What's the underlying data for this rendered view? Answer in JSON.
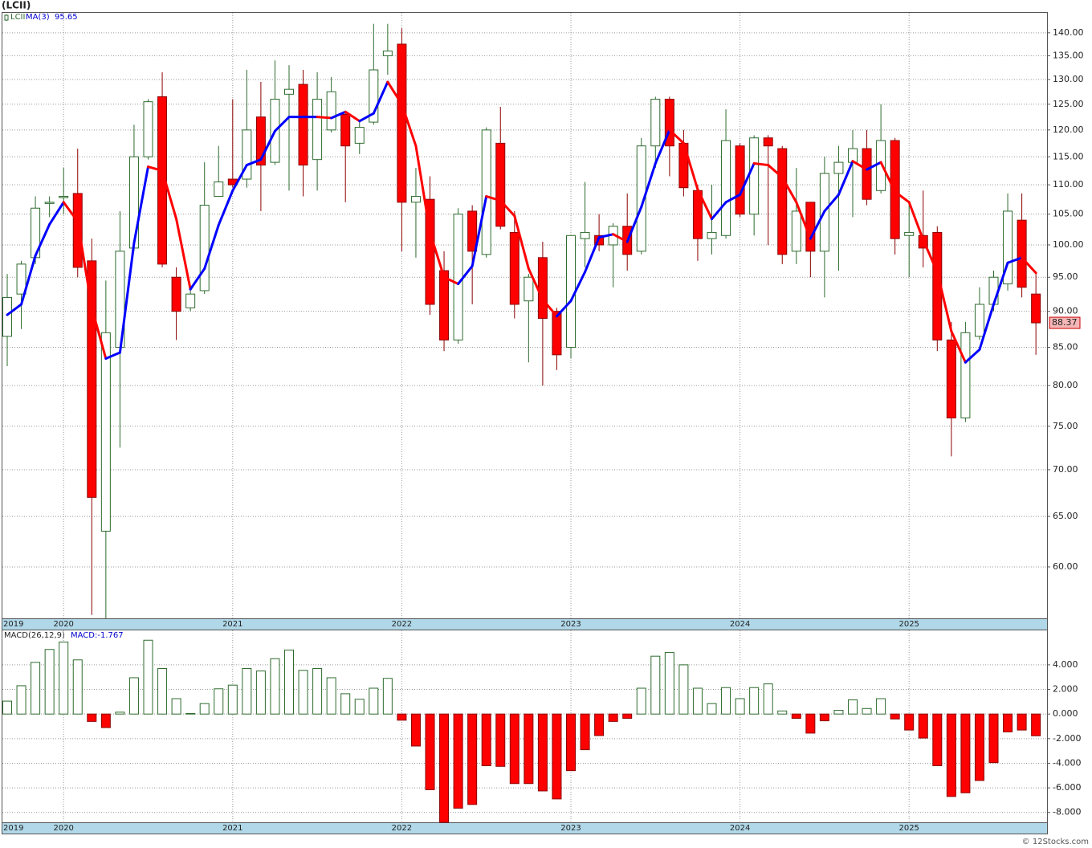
{
  "chart_data": [
    {
      "type": "candlestick",
      "title": "(LCII)",
      "name": "LCII",
      "categories": [
        "2019",
        null,
        null,
        null,
        "2020",
        null,
        null,
        null,
        null,
        null,
        null,
        null,
        null,
        null,
        null,
        null,
        "2021",
        null,
        null,
        null,
        null,
        null,
        null,
        null,
        null,
        null,
        null,
        null,
        "2022",
        null,
        null,
        null,
        null,
        null,
        null,
        null,
        null,
        null,
        null,
        null,
        "2023",
        null,
        null,
        null,
        null,
        null,
        null,
        null,
        null,
        null,
        null,
        null,
        "2024",
        null,
        null,
        null,
        null,
        null,
        null,
        null,
        null,
        null,
        null,
        null,
        "2025",
        null,
        null,
        null,
        null,
        null,
        null,
        null,
        null,
        null
      ],
      "open": [
        86.5,
        92.5,
        98,
        107,
        108,
        108.5,
        97.5,
        63.5,
        85,
        99.5,
        115,
        126.5,
        95,
        90.5,
        93,
        108,
        111,
        111,
        122.5,
        114,
        127,
        129,
        114.5,
        120,
        123,
        117.5,
        121.5,
        135,
        137.5,
        107,
        107.5,
        96,
        86,
        105.5,
        98.5,
        117.5,
        102,
        91.5,
        98,
        90,
        85,
        101,
        101.5,
        100,
        103,
        99,
        117,
        126,
        117.5,
        109,
        101,
        101.5,
        117,
        105,
        118.5,
        116.5,
        99,
        107,
        99,
        112,
        114,
        116.5,
        109,
        118,
        101.5,
        101.5,
        102,
        86,
        76,
        86.5,
        91,
        94,
        104,
        92.5
      ],
      "high": [
        95.5,
        97.5,
        108,
        108,
        113,
        116.5,
        101,
        94.5,
        105.5,
        121,
        126,
        131.5,
        96.5,
        93,
        114,
        117,
        126,
        132,
        129.5,
        134,
        133,
        132,
        131.5,
        130.5,
        123.5,
        121.5,
        142,
        142,
        141,
        113,
        111.5,
        99,
        106,
        106.5,
        120.5,
        124.5,
        105.5,
        95.5,
        100.5,
        90.5,
        101.5,
        110.5,
        105,
        103.5,
        108.5,
        118.5,
        126.5,
        126.5,
        120,
        110,
        110,
        124,
        117.5,
        119,
        119,
        117,
        113,
        107,
        115,
        117,
        120,
        120,
        125,
        118.5,
        107,
        109,
        103,
        88.5,
        88.5,
        93.5,
        96,
        108.5,
        108.5,
        95.5
      ],
      "low": [
        82.5,
        87.5,
        97,
        104.5,
        105,
        95,
        55.6,
        55.3,
        72.5,
        99,
        114.5,
        96.5,
        86,
        90,
        92.5,
        108,
        109.5,
        109.5,
        105.5,
        113.5,
        109,
        108,
        109,
        119.5,
        107,
        115.5,
        121,
        131,
        99,
        98,
        89.5,
        84.5,
        85.5,
        91,
        98,
        102.5,
        89,
        83,
        80,
        82,
        83.5,
        96.5,
        99,
        93.5,
        96,
        98.5,
        113,
        111.5,
        108,
        97.5,
        98.5,
        101,
        104.5,
        101.5,
        100,
        97,
        97,
        95,
        92,
        96,
        104.5,
        106.5,
        108.5,
        98.5,
        95,
        96.5,
        84.5,
        71.5,
        75.5,
        86,
        90,
        93,
        92,
        84
      ],
      "close": [
        92,
        97,
        106,
        107,
        108,
        96.5,
        67,
        87,
        99,
        115,
        125.5,
        97,
        90,
        92.5,
        106.5,
        110.5,
        110,
        120,
        113.5,
        126,
        128,
        113.5,
        126,
        127.5,
        117,
        120.5,
        132,
        136,
        107,
        108,
        91,
        86,
        105,
        99,
        120,
        103,
        91,
        95,
        89,
        84,
        101.5,
        102,
        100,
        103,
        98.5,
        117,
        126,
        117,
        109.5,
        101,
        102,
        118,
        105,
        118.5,
        117,
        98.5,
        105.5,
        99,
        112,
        114,
        116.5,
        107.5,
        118,
        101,
        102,
        99.5,
        86,
        76,
        87,
        91,
        95,
        105.5,
        93.5,
        88.37
      ],
      "up_color": "#2e6b2e",
      "down_color": "#ff0000",
      "series": [
        {
          "name": "MA(3)",
          "up_color": "#0000ff",
          "down_color": "#ff0000",
          "values": [
            89.5,
            91,
            98.3,
            103.3,
            107,
            103.8,
            90.5,
            83.5,
            84.3,
            100.3,
            113.2,
            112.5,
            104.2,
            93.2,
            96.3,
            103.2,
            109,
            113.5,
            114.5,
            119.8,
            122.5,
            122.5,
            122.5,
            122.3,
            123.5,
            121.7,
            123.2,
            129.5,
            125,
            117,
            102,
            95,
            94,
            96.7,
            108,
            107.3,
            104.7,
            96.3,
            91.7,
            89.3,
            91.5,
            95.8,
            101.2,
            101.7,
            100.5,
            106.2,
            113.8,
            120,
            117.5,
            109.2,
            104.2,
            107,
            108.3,
            113.8,
            113.5,
            111.3,
            107,
            101,
            105.5,
            108.3,
            114.2,
            112.7,
            114,
            108.8,
            107,
            100.8,
            95.8,
            87.2,
            83,
            84.7,
            91,
            97.2,
            98,
            95.65
          ]
        }
      ],
      "log_scale": true,
      "grid": true,
      "ylim": [
        55.3,
        144.5
      ],
      "yticks": [
        {
          "value": 60,
          "label": "60.00"
        },
        {
          "value": 65,
          "label": "65.00"
        },
        {
          "value": 70,
          "label": "70.00"
        },
        {
          "value": 75,
          "label": "75.00"
        },
        {
          "value": 80,
          "label": "80.00"
        },
        {
          "value": 85,
          "label": "85.00"
        },
        {
          "value": 90,
          "label": "90.00"
        },
        {
          "value": 95,
          "label": "95.00"
        },
        {
          "value": 100,
          "label": "100.00"
        },
        {
          "value": 105,
          "label": "105.00"
        },
        {
          "value": 110,
          "label": "110.00"
        },
        {
          "value": 115,
          "label": "115.00"
        },
        {
          "value": 120,
          "label": "120.00"
        },
        {
          "value": 125,
          "label": "125.00"
        },
        {
          "value": 130,
          "label": "130.00"
        },
        {
          "value": 135,
          "label": "135.00"
        },
        {
          "value": 140,
          "label": "140.00"
        }
      ]
    },
    {
      "type": "histogram_bar",
      "name": "MACD(26,12,9)",
      "current_label": "MACD:-1.767",
      "up_color": "#2e6b2e",
      "down_color": "#ff0000",
      "values": [
        1.05,
        2.3,
        4.2,
        5.25,
        5.85,
        4.4,
        -0.6,
        -1.1,
        0.15,
        2.95,
        6.0,
        3.7,
        1.25,
        0.05,
        0.85,
        2.05,
        2.35,
        3.7,
        3.5,
        4.5,
        5.2,
        3.55,
        3.7,
        2.95,
        1.65,
        1.2,
        2.1,
        2.9,
        -0.5,
        -2.6,
        -6.15,
        -8.8,
        -7.65,
        -7.35,
        -4.2,
        -4.25,
        -5.65,
        -5.65,
        -6.25,
        -6.9,
        -4.6,
        -2.9,
        -1.75,
        -0.6,
        -0.35,
        2.1,
        4.7,
        5.0,
        4.0,
        2.1,
        0.85,
        2.15,
        1.25,
        2.15,
        2.45,
        0.25,
        -0.35,
        -1.55,
        -0.55,
        0.3,
        1.15,
        0.45,
        1.25,
        -0.4,
        -1.3,
        -1.95,
        -4.2,
        -6.7,
        -6.4,
        -5.4,
        -3.95,
        -1.45,
        -1.3,
        -1.767
      ],
      "ylim": [
        -8.8,
        6.8
      ],
      "yticks": [
        {
          "value": -8,
          "label": "-8.000"
        },
        {
          "value": -6,
          "label": "-6.000"
        },
        {
          "value": -4,
          "label": "-4.000"
        },
        {
          "value": -2,
          "label": "-2.000"
        },
        {
          "value": 0,
          "label": "0.000"
        },
        {
          "value": 2,
          "label": "2.000"
        },
        {
          "value": 4,
          "label": "4.000"
        }
      ],
      "grid": true
    }
  ],
  "footer": "© 12Stocks.com"
}
